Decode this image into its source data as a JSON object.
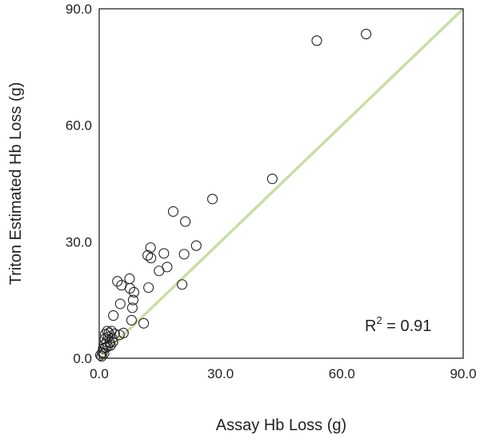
{
  "chart_data": {
    "type": "scatter",
    "title": "",
    "xlabel": "Assay Hb Loss (g)",
    "ylabel": "Triton Estimated Hb Loss (g)",
    "xlim": [
      0,
      90
    ],
    "ylim": [
      0,
      90
    ],
    "xticks": [
      "0.0",
      "30.0",
      "60.0",
      "90.0"
    ],
    "yticks": [
      "0.0",
      "30.0",
      "60.0",
      "90.0"
    ],
    "grid": false,
    "reference_line": {
      "kind": "identity",
      "from": [
        0,
        0
      ],
      "to": [
        90,
        90
      ],
      "color": "#c9dea8"
    },
    "annotation": {
      "prefix": "R",
      "superscript": "2",
      "suffix": " = 0.91"
    },
    "marker": {
      "shape": "open-circle",
      "stroke": "#222222"
    },
    "points": [
      [
        0.3,
        0.8
      ],
      [
        0.6,
        0.5
      ],
      [
        0.8,
        1.5
      ],
      [
        1.0,
        2.5
      ],
      [
        1.2,
        1.2
      ],
      [
        1.3,
        3.5
      ],
      [
        1.4,
        5.0
      ],
      [
        1.5,
        6.2
      ],
      [
        1.6,
        2.8
      ],
      [
        1.8,
        4.2
      ],
      [
        2.0,
        7.0
      ],
      [
        2.1,
        3.0
      ],
      [
        2.2,
        5.5
      ],
      [
        2.4,
        6.5
      ],
      [
        2.6,
        4.0
      ],
      [
        2.8,
        3.3
      ],
      [
        3.0,
        7.0
      ],
      [
        3.2,
        5.2
      ],
      [
        3.4,
        4.2
      ],
      [
        3.5,
        11.0
      ],
      [
        3.8,
        6.3
      ],
      [
        4.5,
        19.8
      ],
      [
        5.0,
        6.0
      ],
      [
        5.2,
        14.0
      ],
      [
        5.5,
        18.8
      ],
      [
        6.0,
        6.5
      ],
      [
        7.5,
        20.5
      ],
      [
        7.6,
        18.0
      ],
      [
        8.0,
        9.8
      ],
      [
        8.2,
        13.0
      ],
      [
        8.4,
        15.0
      ],
      [
        8.6,
        17.0
      ],
      [
        11.0,
        9.0
      ],
      [
        12.0,
        26.5
      ],
      [
        12.2,
        18.2
      ],
      [
        12.7,
        28.5
      ],
      [
        12.8,
        25.8
      ],
      [
        14.8,
        22.5
      ],
      [
        16.0,
        27.0
      ],
      [
        16.8,
        23.5
      ],
      [
        18.3,
        37.8
      ],
      [
        20.5,
        19.0
      ],
      [
        21.0,
        26.8
      ],
      [
        21.3,
        35.2
      ],
      [
        24.0,
        29.0
      ],
      [
        28.0,
        41.0
      ],
      [
        42.8,
        46.2
      ],
      [
        53.8,
        81.8
      ],
      [
        66.0,
        83.5
      ]
    ]
  }
}
